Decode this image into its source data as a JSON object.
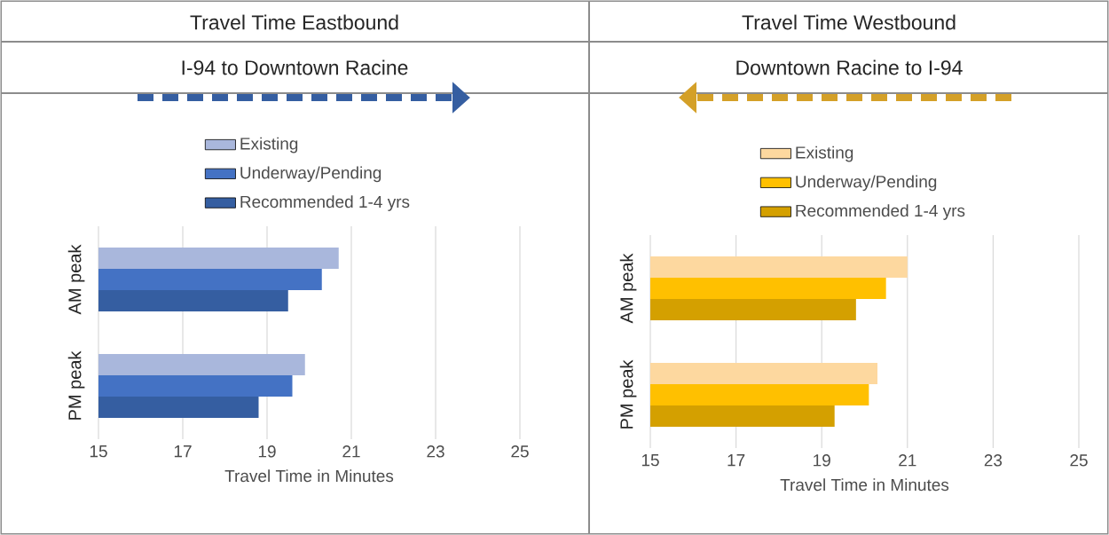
{
  "chart_data": [
    {
      "type": "bar",
      "orientation": "horizontal",
      "title": "Travel Time Eastbound",
      "subtitle": "I-94 to Downtown Racine",
      "xlabel": "Travel Time in Minutes",
      "categories": [
        "AM peak",
        "PM peak"
      ],
      "series": [
        {
          "name": "Existing",
          "color": "#a9b7dc",
          "values": [
            20.7,
            19.9
          ]
        },
        {
          "name": "Underway/Pending",
          "color": "#4472c4",
          "values": [
            20.3,
            19.6
          ]
        },
        {
          "name": "Recommended 1-4 yrs",
          "color": "#355ea1",
          "values": [
            19.5,
            18.8
          ]
        }
      ],
      "xlim": [
        15,
        25
      ],
      "xticks": [
        15,
        17,
        19,
        21,
        23,
        25
      ],
      "grid": "x",
      "legend": "top"
    },
    {
      "type": "bar",
      "orientation": "horizontal",
      "title": "Travel Time Westbound",
      "subtitle": "Downtown Racine to I-94",
      "xlabel": "Travel Time in Minutes",
      "categories": [
        "AM peak",
        "PM peak"
      ],
      "series": [
        {
          "name": "Existing",
          "color": "#fdd89f",
          "values": [
            21.0,
            20.3
          ]
        },
        {
          "name": "Underway/Pending",
          "color": "#ffc000",
          "values": [
            20.5,
            20.1
          ]
        },
        {
          "name": "Recommended 1-4 yrs",
          "color": "#d4a000",
          "values": [
            19.8,
            19.3
          ]
        }
      ],
      "xlim": [
        15,
        25
      ],
      "xticks": [
        15,
        17,
        19,
        21,
        23,
        25
      ],
      "grid": "x",
      "legend": "top"
    }
  ]
}
